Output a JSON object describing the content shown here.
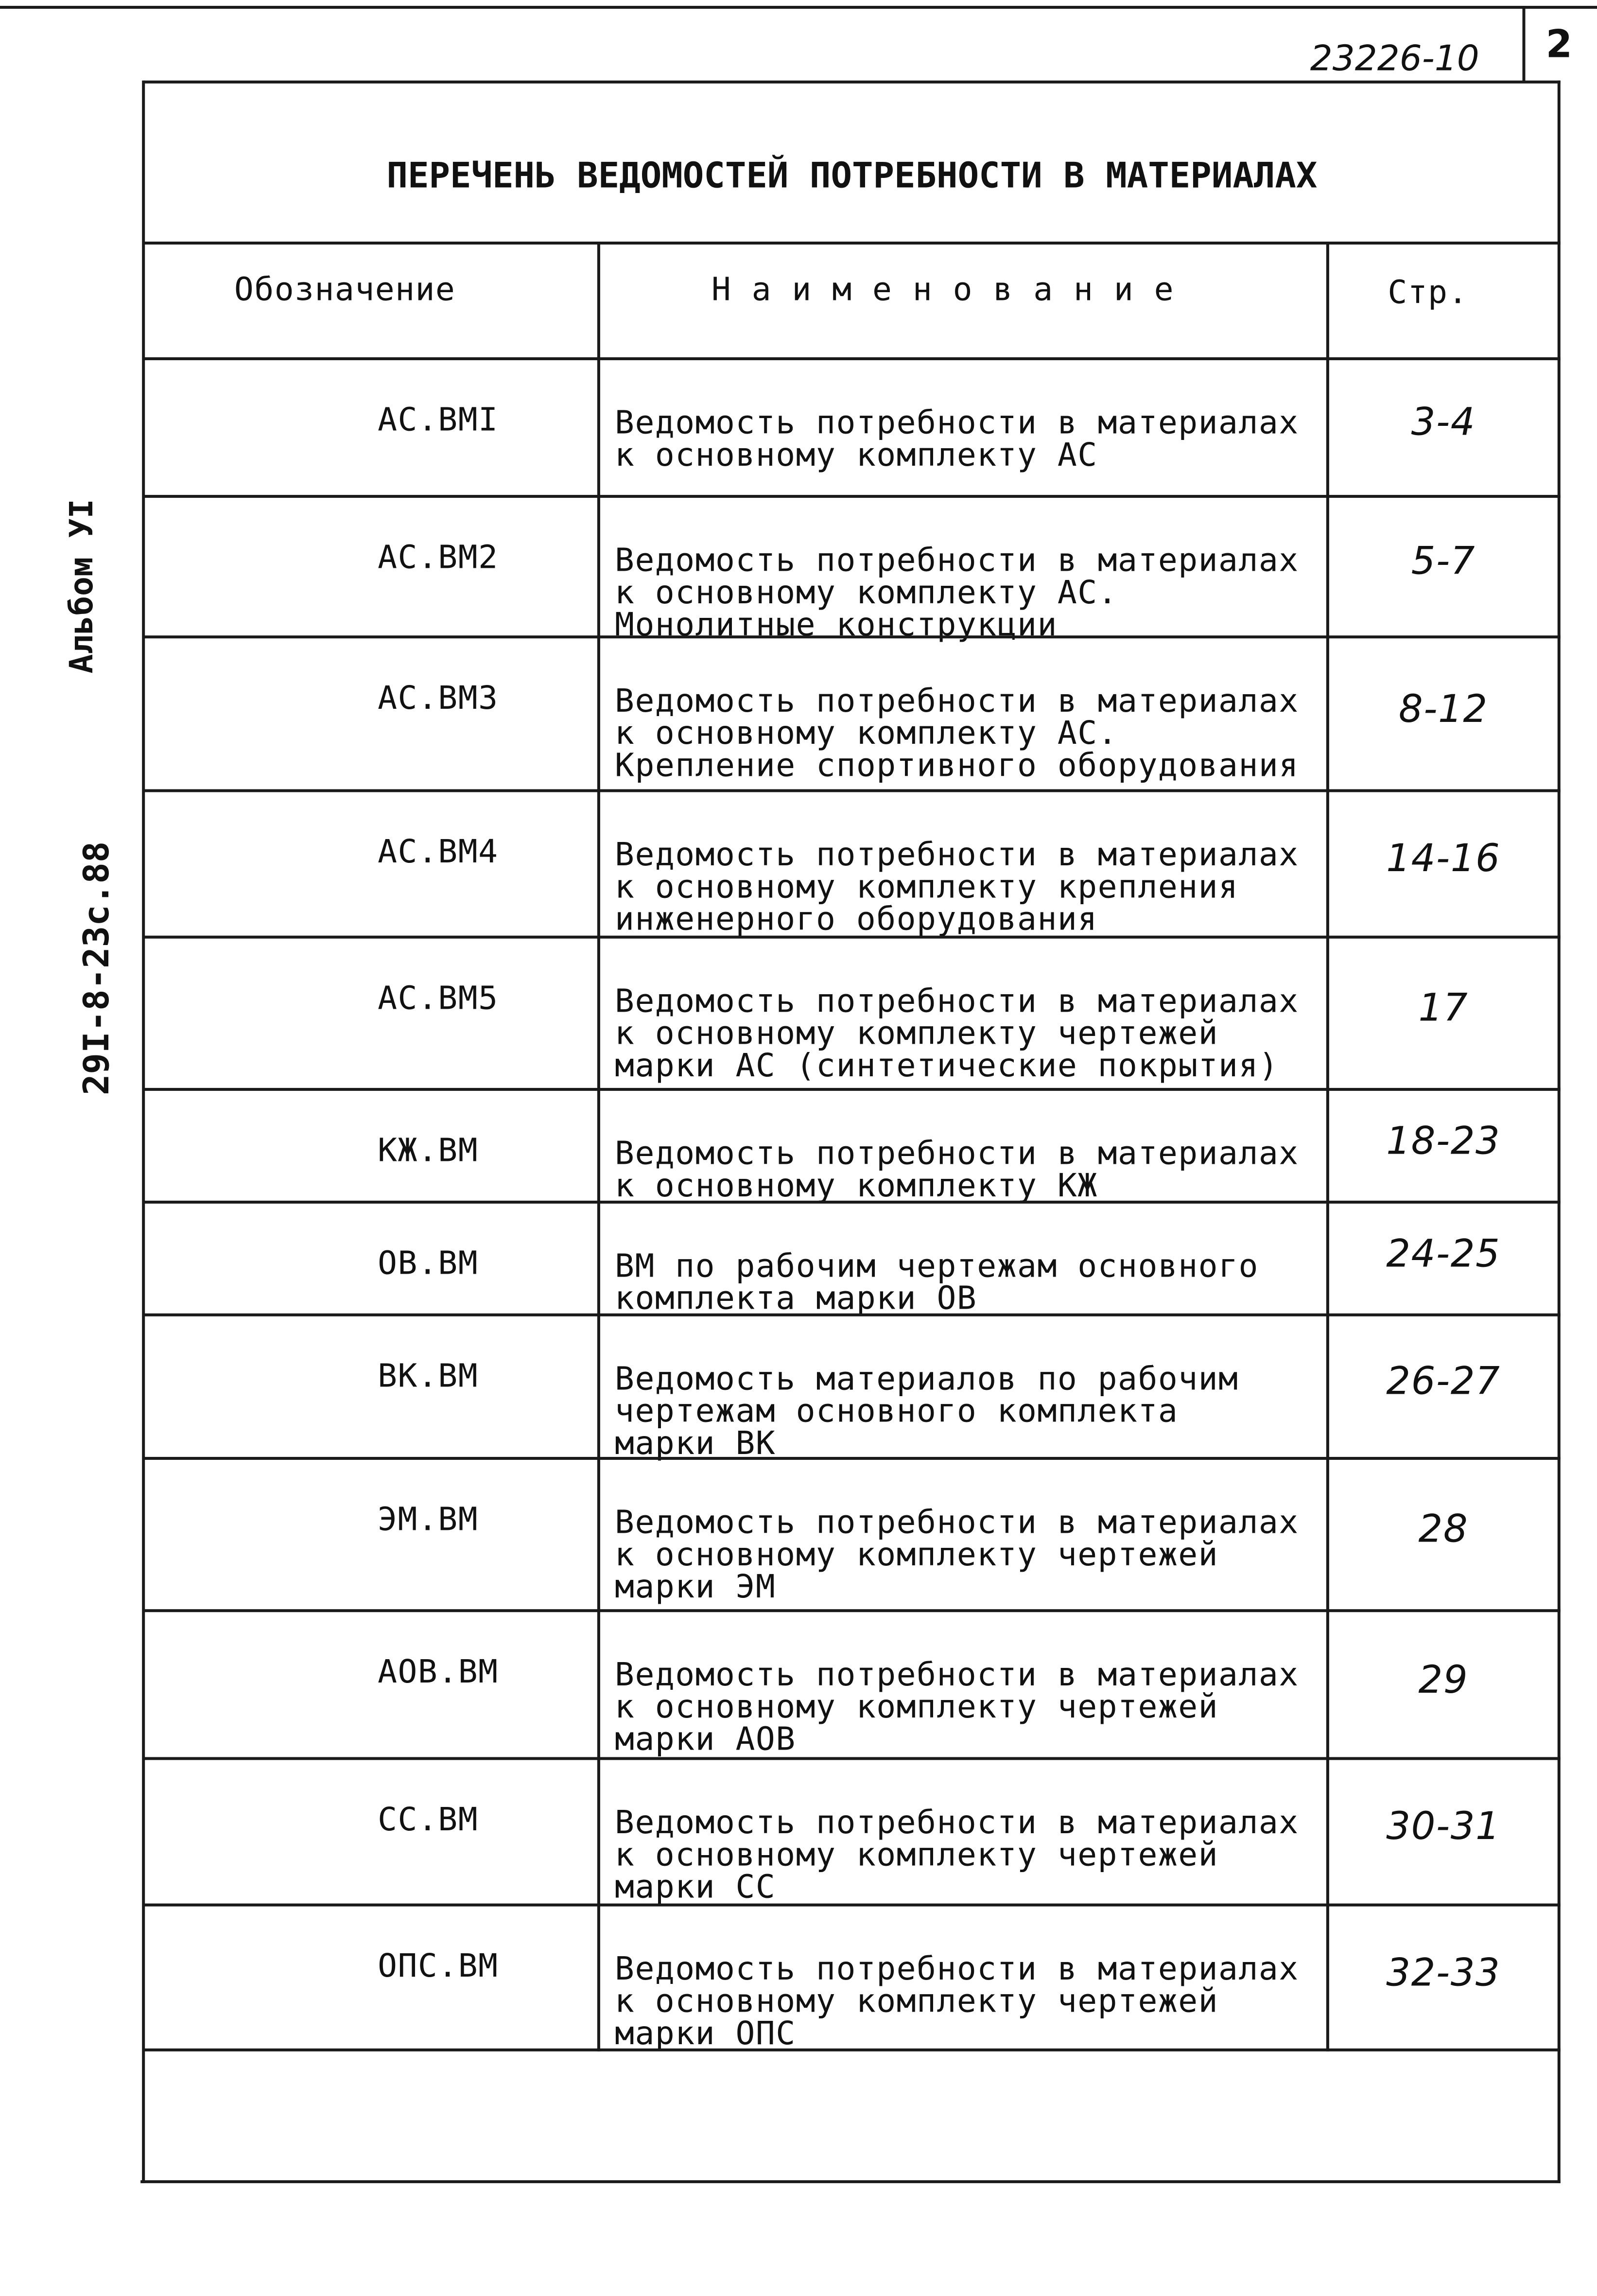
{
  "stamp": {
    "document_number": "23226-10",
    "sheet": "2"
  },
  "side_labels": {
    "album": "Альбом УI",
    "code": "29I-8-23с.88"
  },
  "title": "ПЕРЕЧЕНЬ ВЕДОМОСТЕЙ ПОТРЕБНОСТИ В МАТЕРИАЛАХ",
  "headers": {
    "designation": "Обозначение",
    "name": "Н а и м е н о в а н и е",
    "page": "Стр."
  },
  "rows": [
    {
      "designation": "АС.ВМI",
      "name": "Ведомость потребности в материалах\nк основному комплекту АС",
      "page": "3-4"
    },
    {
      "designation": "АС.ВМ2",
      "name": "Ведомость потребности в материалах\nк основному комплекту АС.\nМонолитные конструкции",
      "page": "5-7"
    },
    {
      "designation": "АС.ВМ3",
      "name": "Ведомость потребности в материалах\nк основному комплекту АС.\nКрепление спортивного оборудования",
      "page": "8-12"
    },
    {
      "designation": "АС.ВМ4",
      "name": "Ведомость потребности в материалах\nк основному комплекту крепления\nинженерного оборудования",
      "page": "14-16"
    },
    {
      "designation": "АС.ВМ5",
      "name": "Ведомость потребности в материалах\nк основному комплекту чертежей\nмарки АС (синтетические покрытия)",
      "page": "17"
    },
    {
      "designation": "КЖ.ВМ",
      "name": "Ведомость потребности в материалах\nк основному комплекту КЖ",
      "page": "18-23"
    },
    {
      "designation": "ОВ.ВМ",
      "name": "ВМ по рабочим чертежам основного\nкомплекта марки ОВ",
      "page": "24-25"
    },
    {
      "designation": "ВК.ВМ",
      "name": "Ведомость материалов по рабочим\nчертежам основного комплекта\nмарки ВК",
      "page": "26-27"
    },
    {
      "designation": "ЭМ.ВМ",
      "name": "Ведомость потребности в материалах\nк основному комплекту чертежей\nмарки ЭМ",
      "page": "28"
    },
    {
      "designation": "АОВ.ВМ",
      "name": "Ведомость потребности в материалах\nк основному комплекту чертежей\nмарки АОВ",
      "page": "29"
    },
    {
      "designation": "СС.ВМ",
      "name": "Ведомость потребности в материалах\nк основному комплекту чертежей\nмарки СС",
      "page": "30-31"
    },
    {
      "designation": "ОПС.ВМ",
      "name": "Ведомость потребности в материалах\nк основному комплекту чертежей\nмарки ОПС",
      "page": "32-33"
    }
  ]
}
